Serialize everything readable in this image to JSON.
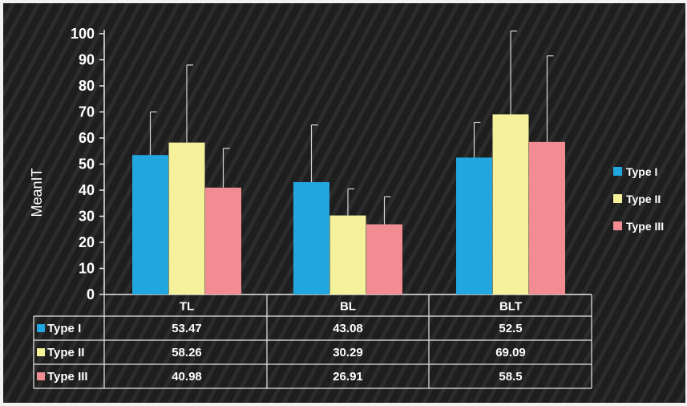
{
  "chart_data": {
    "type": "bar",
    "ylabel": "MeanIT",
    "xlabel": "",
    "ylim": [
      0,
      100
    ],
    "yticks": [
      0,
      10,
      20,
      30,
      40,
      50,
      60,
      70,
      80,
      90,
      100
    ],
    "ytick_labels": [
      "0",
      "10",
      "20",
      "30",
      "40",
      "50",
      "60",
      "70",
      "80",
      "90",
      "100"
    ],
    "categories": [
      "TL",
      "BL",
      "BLT"
    ],
    "series": [
      {
        "name": "Type I",
        "color": "#22a6e0",
        "values": [
          53.47,
          43.08,
          52.5
        ],
        "error_upper": [
          70,
          65,
          66
        ],
        "value_labels": [
          "53.47",
          "43.08",
          "52.5"
        ]
      },
      {
        "name": "Type II",
        "color": "#f5f09a",
        "values": [
          58.26,
          30.29,
          69.09
        ],
        "error_upper": [
          88,
          40.5,
          101
        ],
        "value_labels": [
          "58.26",
          "30.29",
          "69.09"
        ]
      },
      {
        "name": "Type III",
        "color": "#f08c92",
        "values": [
          40.98,
          26.91,
          58.5
        ],
        "error_upper": [
          56,
          37.5,
          91.5
        ],
        "value_labels": [
          "40.98",
          "26.91",
          "58.5"
        ]
      }
    ],
    "grid": false,
    "legend": "right",
    "data_table": true,
    "background_color": "#1c1c1c"
  }
}
